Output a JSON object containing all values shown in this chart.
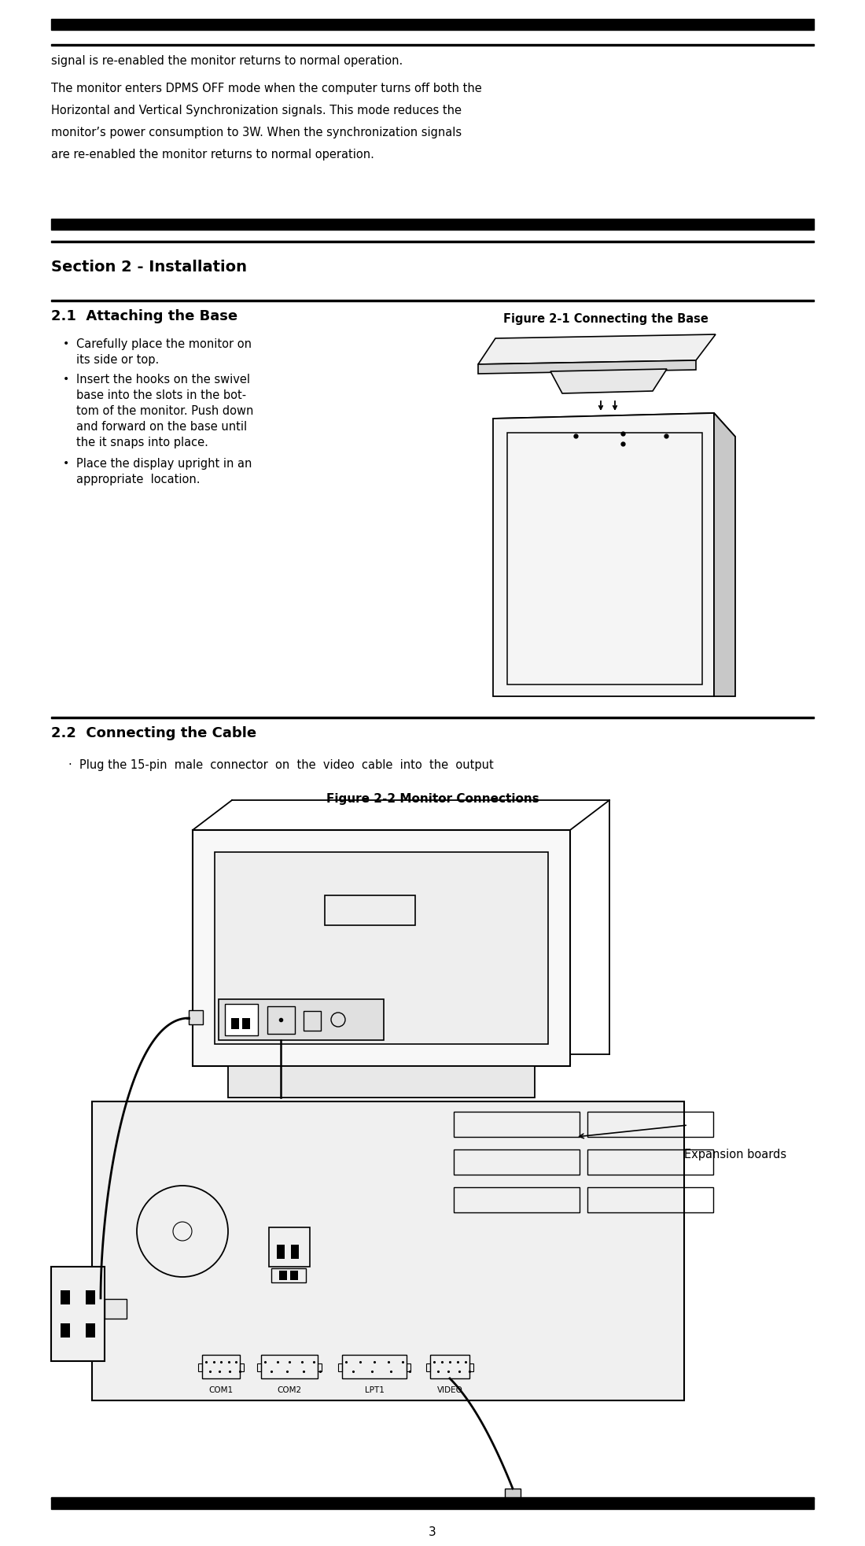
{
  "bg_color": "#ffffff",
  "text_color": "#000000",
  "page_number": "3",
  "top_line1": "signal is re-enabled the monitor returns to normal operation.",
  "top_para_l1": "The monitor enters DPMS OFF mode when the computer turns off both the",
  "top_para_l2": "Horizontal and Vertical Synchronization signals. This mode reduces the",
  "top_para_l3": "monitor’s power consumption to 3W. When the synchronization signals",
  "top_para_l4": "are re-enabled the monitor returns to normal operation.",
  "section2_title": "Section 2 - Installation",
  "sec21_title": "2.1  Attaching the Base",
  "fig21_title": "Figure 2-1 Connecting the Base",
  "bullet1a": "Carefully place the monitor on",
  "bullet1b": "its side or top.",
  "bullet2a": "Insert the hooks on the swivel",
  "bullet2b": "base into the slots in the bot-",
  "bullet2c": "tom of the monitor. Push down",
  "bullet2d": "and forward on the base until",
  "bullet2e": "the it snaps into place.",
  "bullet3a": "Place the display upright in an",
  "bullet3b": "appropriate  location.",
  "sec22_title": "2.2  Connecting the Cable",
  "cable_text": "·  Plug the 15-pin  male  connector  on  the  video  cable  into  the  output",
  "fig22_title": "Figure 2-2 Monitor Connections",
  "expansion_label": "Expansion boards",
  "lm": 55,
  "rm": 1025
}
